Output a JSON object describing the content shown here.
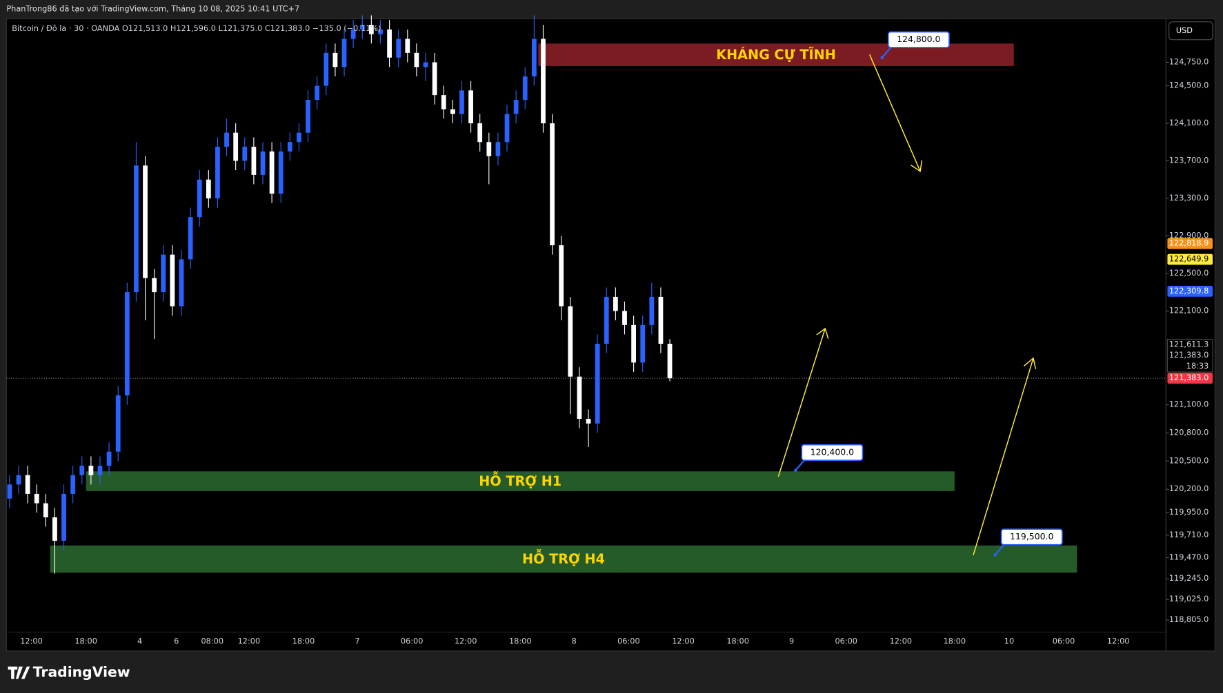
{
  "header": {
    "text": "PhanTrong86 đã tạo với TradingView.com, Tháng 10 08, 2025 10:41 UTC+7"
  },
  "logo": "TradingView",
  "chart_data": {
    "type": "candlestick",
    "symbol": "Bitcoin / Đô la · 30 · OANDA",
    "ohlc": [
      "O121,513.0",
      "H121,596.0",
      "L121,375.0",
      "C121,383.0",
      "−135.0 (−0.11%)"
    ],
    "currency": "USD",
    "up_color": "#2962ff",
    "down_color": "#ffffff",
    "open": [
      120100,
      120250,
      120350,
      120150,
      120050,
      119900,
      119650,
      120150,
      120350,
      120450,
      120350,
      120450,
      120600,
      121200,
      122300,
      123650,
      122450,
      122300,
      122700,
      122150,
      122650,
      123100,
      123500,
      123300,
      123850,
      124000,
      123700,
      123850,
      123550,
      123800,
      123350,
      123800,
      123900,
      124000,
      124350,
      124500,
      124850,
      124700,
      125000,
      125100,
      125150,
      125050,
      125100,
      124800,
      125000,
      124850,
      124700,
      124750,
      124400,
      124250,
      124200,
      124450,
      124100,
      123900,
      123750,
      123900,
      124200,
      124350,
      124600,
      125000,
      124100,
      122800,
      122150,
      121400,
      120950,
      120900,
      121750,
      122250,
      122100,
      121950,
      121550,
      121950,
      122250,
      121750
    ],
    "high": [
      120350,
      120450,
      120450,
      120250,
      120150,
      120000,
      120250,
      120450,
      120550,
      120550,
      120550,
      120700,
      121300,
      122400,
      123900,
      123750,
      122550,
      122800,
      122800,
      122750,
      123200,
      123600,
      123600,
      123950,
      124150,
      124100,
      123950,
      123950,
      123900,
      123900,
      123900,
      124000,
      124100,
      124450,
      124600,
      124950,
      124950,
      125100,
      125200,
      125250,
      125250,
      125200,
      125200,
      125100,
      125100,
      124950,
      124850,
      124850,
      124500,
      124350,
      124550,
      124550,
      124200,
      124000,
      124000,
      124300,
      124450,
      124700,
      125250,
      125150,
      124200,
      122900,
      122250,
      121500,
      121050,
      121850,
      122350,
      122350,
      122200,
      122050,
      122050,
      122400,
      122350,
      121800
    ],
    "low": [
      120000,
      120150,
      120050,
      119950,
      119800,
      119300,
      119550,
      120050,
      120250,
      120250,
      120250,
      120350,
      120500,
      121100,
      122200,
      122000,
      121800,
      122200,
      122050,
      122050,
      122550,
      123000,
      123200,
      123200,
      123750,
      123600,
      123600,
      123450,
      123450,
      123250,
      123250,
      123700,
      123800,
      123900,
      124250,
      124400,
      124600,
      124600,
      124900,
      125000,
      124950,
      124950,
      124700,
      124700,
      124750,
      124600,
      124550,
      124300,
      124150,
      124100,
      124100,
      124000,
      123800,
      123450,
      123650,
      123800,
      124100,
      124250,
      124500,
      124000,
      122700,
      122000,
      121000,
      120850,
      120650,
      120800,
      121650,
      122000,
      121850,
      121450,
      121450,
      121850,
      121650,
      121350
    ],
    "close": [
      120250,
      120350,
      120150,
      120050,
      119900,
      119650,
      120150,
      120350,
      120450,
      120350,
      120450,
      120600,
      121200,
      122300,
      123650,
      122450,
      122300,
      122700,
      122150,
      122650,
      123100,
      123500,
      123300,
      123850,
      124000,
      123700,
      123850,
      123550,
      123800,
      123350,
      123800,
      123900,
      124000,
      124350,
      124500,
      124850,
      124700,
      125000,
      125100,
      125150,
      125050,
      125100,
      124800,
      125000,
      124850,
      124700,
      124750,
      124400,
      124250,
      124200,
      124450,
      124100,
      123900,
      123750,
      123900,
      124200,
      124350,
      124600,
      125000,
      124100,
      122800,
      122150,
      121400,
      120950,
      120900,
      121750,
      122250,
      122100,
      121950,
      121550,
      121950,
      122250,
      121750,
      121383
    ],
    "ylim": [
      118675,
      125215
    ],
    "yticks": [
      {
        "value": 124750,
        "label": "124,750.0"
      },
      {
        "value": 124500,
        "label": "124,500.0"
      },
      {
        "value": 124100,
        "label": "124,100.0"
      },
      {
        "value": 123700,
        "label": "123,700.0"
      },
      {
        "value": 123300,
        "label": "123,300.0"
      },
      {
        "value": 122900,
        "label": "122,900.0"
      },
      {
        "value": 122500,
        "label": "122,500.0"
      },
      {
        "value": 122100,
        "label": "122,100.0"
      },
      {
        "value": 121100,
        "label": "121,100.0"
      },
      {
        "value": 120800,
        "label": "120,800.0"
      },
      {
        "value": 120500,
        "label": "120,500.0"
      },
      {
        "value": 120200,
        "label": "120,200.0"
      },
      {
        "value": 119950,
        "label": "119,950.0"
      },
      {
        "value": 119710,
        "label": "119,710.0"
      },
      {
        "value": 119470,
        "label": "119,470.0"
      },
      {
        "value": 119245,
        "label": "119,245.0"
      },
      {
        "value": 119025,
        "label": "119,025.0"
      },
      {
        "value": 118805,
        "label": "118,805.0"
      }
    ],
    "x_labels": [
      "12:00",
      "18:00",
      "4",
      "6",
      "08:00",
      "12:00",
      "18:00",
      "7",
      "06:00",
      "12:00",
      "18:00",
      "8",
      "06:00",
      "12:00",
      "18:00",
      "9",
      "06:00",
      "12:00",
      "18:00",
      "10",
      "06:00",
      "12:00"
    ],
    "price_labels": [
      {
        "value": 122818.9,
        "label": "122,818.9",
        "color": "#f7931a"
      },
      {
        "value": 122649.9,
        "label": "122,649.9",
        "color": "#ffeb3b"
      },
      {
        "value": 122309.8,
        "label": "122,309.8",
        "color": "#2962ff"
      },
      {
        "value": 121383.0,
        "label": "121,383.0",
        "color": "#f23645"
      }
    ],
    "countdown": [
      "121,611.3",
      "121,383.0",
      "18:33"
    ],
    "zones": [
      {
        "label": "KHÁNG CỰ TĨNH",
        "top": 124950,
        "bottom": 124710,
        "color": "#7b1c22"
      },
      {
        "label": "HỖ TRỢ H1",
        "top": 120390,
        "bottom": 120180,
        "color": "#245b28"
      },
      {
        "label": "HỖ TRỢ H4",
        "top": 119600,
        "bottom": 119310,
        "color": "#245b28"
      }
    ],
    "callouts": [
      {
        "value": 124800,
        "label": "124,800.0"
      },
      {
        "value": 120400,
        "label": "120,400.0"
      },
      {
        "value": 119500,
        "label": "119,500.0"
      }
    ]
  }
}
